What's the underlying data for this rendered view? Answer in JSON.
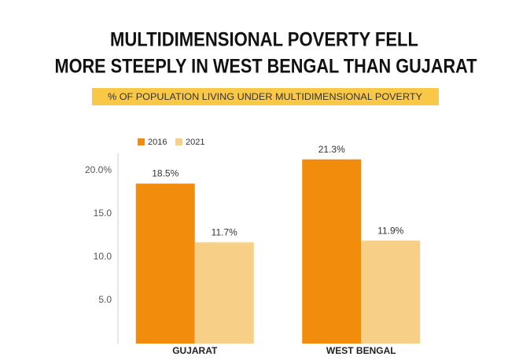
{
  "chart_data": {
    "type": "bar",
    "title": [
      "MULTIDIMENSIONAL POVERTY FELL",
      "MORE STEEPLY IN WEST BENGAL THAN GUJARAT"
    ],
    "subtitle": "% OF POPULATION LIVING UNDER MULTIDIMENSIONAL POVERTY",
    "categories": [
      "GUJARAT",
      "WEST BENGAL"
    ],
    "series": [
      {
        "name": "2016",
        "color": "#f28c0c",
        "values": [
          18.5,
          21.3
        ],
        "value_labels": [
          "18.5%",
          "21.3%"
        ]
      },
      {
        "name": "2021",
        "color": "#f8cf86",
        "values": [
          11.7,
          11.9
        ],
        "value_labels": [
          "11.7%",
          "11.9%"
        ]
      }
    ],
    "ylim": [
      0,
      22
    ],
    "yticks": [
      {
        "value": 5,
        "label": "5.0"
      },
      {
        "value": 10,
        "label": "10.0"
      },
      {
        "value": 15,
        "label": "15.0"
      },
      {
        "value": 20,
        "label": "20.0%"
      }
    ],
    "grid": false
  }
}
